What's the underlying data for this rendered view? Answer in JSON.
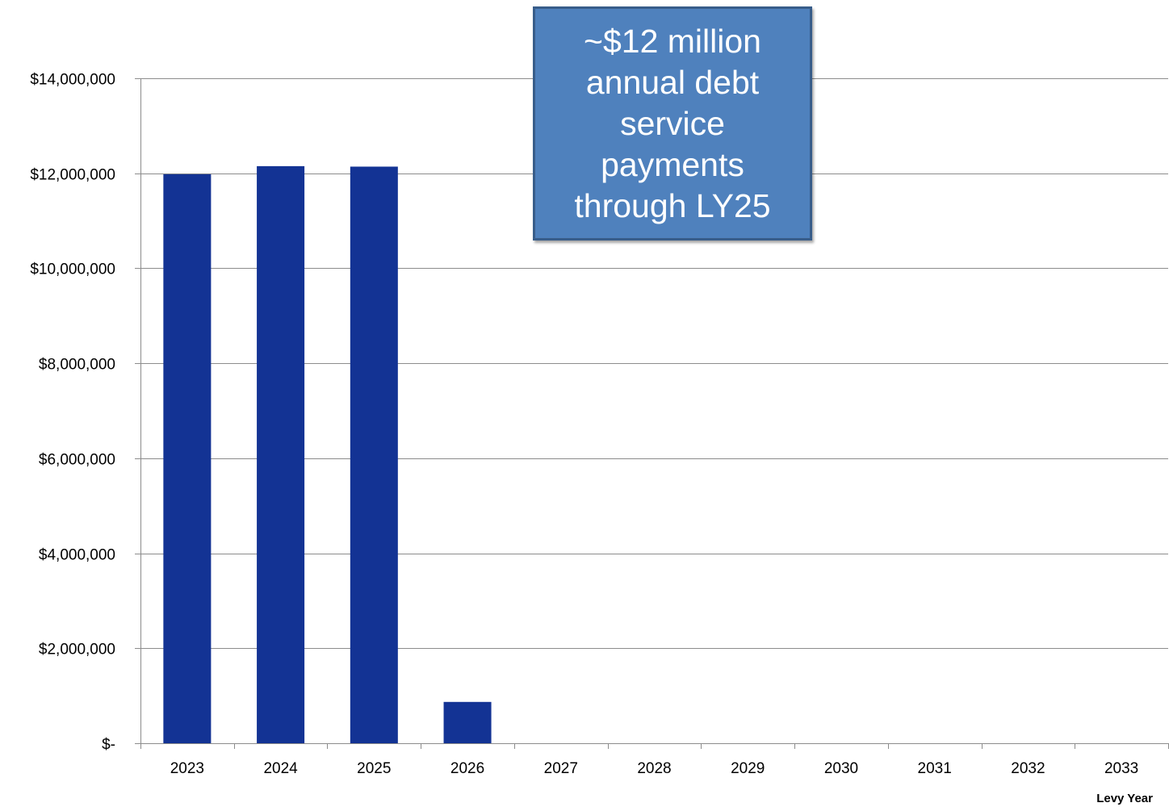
{
  "chart_data": {
    "type": "bar",
    "categories": [
      "2023",
      "2024",
      "2025",
      "2026",
      "2027",
      "2028",
      "2029",
      "2030",
      "2031",
      "2032",
      "2033"
    ],
    "values": [
      11980000,
      12150000,
      12140000,
      870000,
      0,
      0,
      0,
      0,
      0,
      0,
      0
    ],
    "ylim": [
      0,
      14000000
    ],
    "yticks": [
      0,
      2000000,
      4000000,
      6000000,
      8000000,
      10000000,
      12000000,
      14000000
    ],
    "ytick_labels": [
      "$-",
      "$2,000,000",
      "$4,000,000",
      "$6,000,000",
      "$8,000,000",
      "$10,000,000",
      "$12,000,000",
      "$14,000,000"
    ],
    "xlabel": "Levy Year",
    "ylabel": "",
    "title": "",
    "grid": true,
    "bar_color": "#133394",
    "annotation": "~$12 million annual debt service payments through LY25"
  }
}
